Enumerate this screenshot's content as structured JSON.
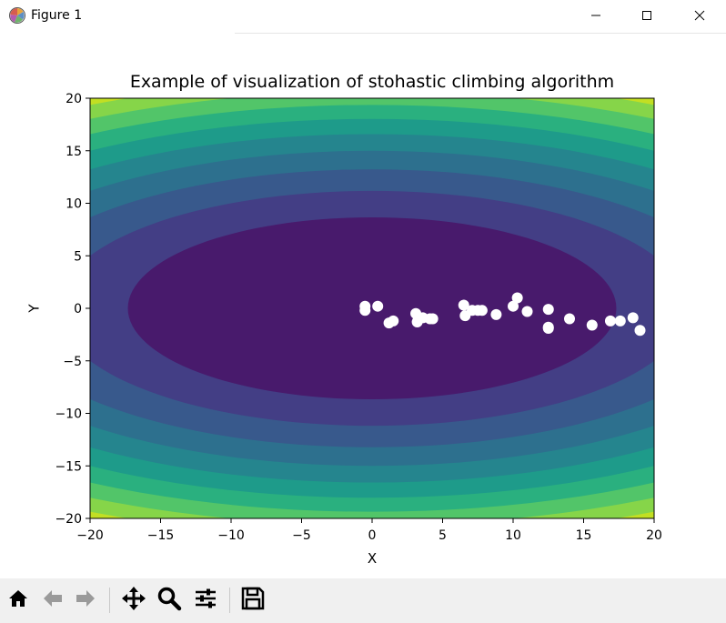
{
  "window": {
    "title": "Figure 1",
    "app_icon": "matplotlib-icon",
    "controls": [
      "minimize-icon",
      "maximize-icon",
      "close-icon"
    ]
  },
  "toolbar": {
    "buttons": [
      {
        "icon": "home-icon",
        "label": "Home"
      },
      {
        "icon": "back-arrow-icon",
        "label": "Back"
      },
      {
        "icon": "forward-arrow-icon",
        "label": "Forward"
      },
      {
        "icon": "pan-icon",
        "label": "Pan"
      },
      {
        "icon": "zoom-icon",
        "label": "Zoom"
      },
      {
        "icon": "configure-subplots-icon",
        "label": "Configure subplots"
      },
      {
        "icon": "save-icon",
        "label": "Save"
      }
    ]
  },
  "chart_data": {
    "type": "scatter",
    "title": "Example of visualization of stohastic climbing algorithm",
    "xlabel": "X",
    "ylabel": "Y",
    "xlim": [
      -20,
      20
    ],
    "ylim": [
      -20,
      20
    ],
    "xticks": [
      -20,
      -15,
      -10,
      -5,
      0,
      5,
      10,
      15,
      20
    ],
    "yticks": [
      -20,
      -15,
      -10,
      -5,
      0,
      5,
      10,
      15,
      20
    ],
    "grid": false,
    "background": "filled contour of f(x,y)=x^2+(2y)^2, 9 levels",
    "contour_colors": [
      "#481a6c",
      "#433e85",
      "#38598c",
      "#2d708e",
      "#25858e",
      "#1e9b8a",
      "#2ab07f",
      "#52c569",
      "#86d549",
      "#c2df23"
    ],
    "contour_levels": [
      300,
      500,
      700,
      900,
      1100,
      1300,
      1500,
      1700,
      1900
    ],
    "marker_color": "#ffffff",
    "points": [
      {
        "x": -0.5,
        "y": 0.2
      },
      {
        "x": -0.5,
        "y": -0.2
      },
      {
        "x": 0.4,
        "y": 0.2
      },
      {
        "x": 1.2,
        "y": -1.4
      },
      {
        "x": 1.5,
        "y": -1.2
      },
      {
        "x": 3.1,
        "y": -0.5
      },
      {
        "x": 3.2,
        "y": -1.3
      },
      {
        "x": 3.6,
        "y": -0.9
      },
      {
        "x": 4.1,
        "y": -1.0
      },
      {
        "x": 4.3,
        "y": -1.0
      },
      {
        "x": 6.5,
        "y": 0.3
      },
      {
        "x": 6.6,
        "y": -0.7
      },
      {
        "x": 7.1,
        "y": -0.2
      },
      {
        "x": 7.5,
        "y": -0.2
      },
      {
        "x": 7.8,
        "y": -0.2
      },
      {
        "x": 8.8,
        "y": -0.6
      },
      {
        "x": 10.0,
        "y": 0.2
      },
      {
        "x": 10.3,
        "y": 1.0
      },
      {
        "x": 11.0,
        "y": -0.3
      },
      {
        "x": 12.5,
        "y": -0.1
      },
      {
        "x": 12.5,
        "y": -1.8
      },
      {
        "x": 12.5,
        "y": -1.9
      },
      {
        "x": 14.0,
        "y": -1.0
      },
      {
        "x": 15.6,
        "y": -1.6
      },
      {
        "x": 16.9,
        "y": -1.2
      },
      {
        "x": 17.6,
        "y": -1.2
      },
      {
        "x": 18.5,
        "y": -0.9
      },
      {
        "x": 19.0,
        "y": -2.1
      }
    ]
  }
}
